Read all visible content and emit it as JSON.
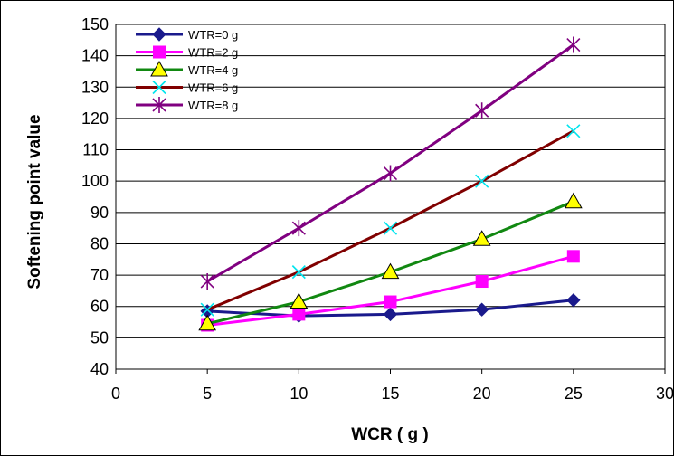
{
  "chart_data": {
    "type": "line",
    "xlabel": "WCR ( g )",
    "ylabel": "Softening point value",
    "xlim": [
      0,
      30
    ],
    "ylim": [
      40,
      150
    ],
    "x_ticks": [
      "0",
      "5",
      "10",
      "15",
      "20",
      "25",
      "30"
    ],
    "y_ticks": [
      "40",
      "50",
      "60",
      "70",
      "80",
      "90",
      "100",
      "110",
      "120",
      "130",
      "140",
      "150"
    ],
    "grid": "horizontal",
    "legend_position": "top-left",
    "x": [
      5,
      10,
      15,
      20,
      25
    ],
    "series": [
      {
        "name": "WTR=0 g",
        "marker": "diamond",
        "color": "#1a1a8c",
        "values": [
          58.5,
          57,
          57.5,
          59,
          62
        ]
      },
      {
        "name": "WTR=2 g",
        "marker": "square",
        "color": "#ff00ff",
        "values": [
          54,
          57.5,
          61.5,
          68,
          76
        ]
      },
      {
        "name": "WTR=4 g",
        "marker": "triangle",
        "color": "#118811",
        "values": [
          54.5,
          61.5,
          71,
          81.5,
          93.5
        ]
      },
      {
        "name": "WTR=6 g",
        "marker": "x",
        "color": "#800000",
        "values": [
          59,
          71,
          85,
          100,
          116
        ]
      },
      {
        "name": "WTR=8 g",
        "marker": "star",
        "color": "#800080",
        "values": [
          68,
          85,
          102.5,
          122.5,
          143.5
        ]
      }
    ]
  }
}
